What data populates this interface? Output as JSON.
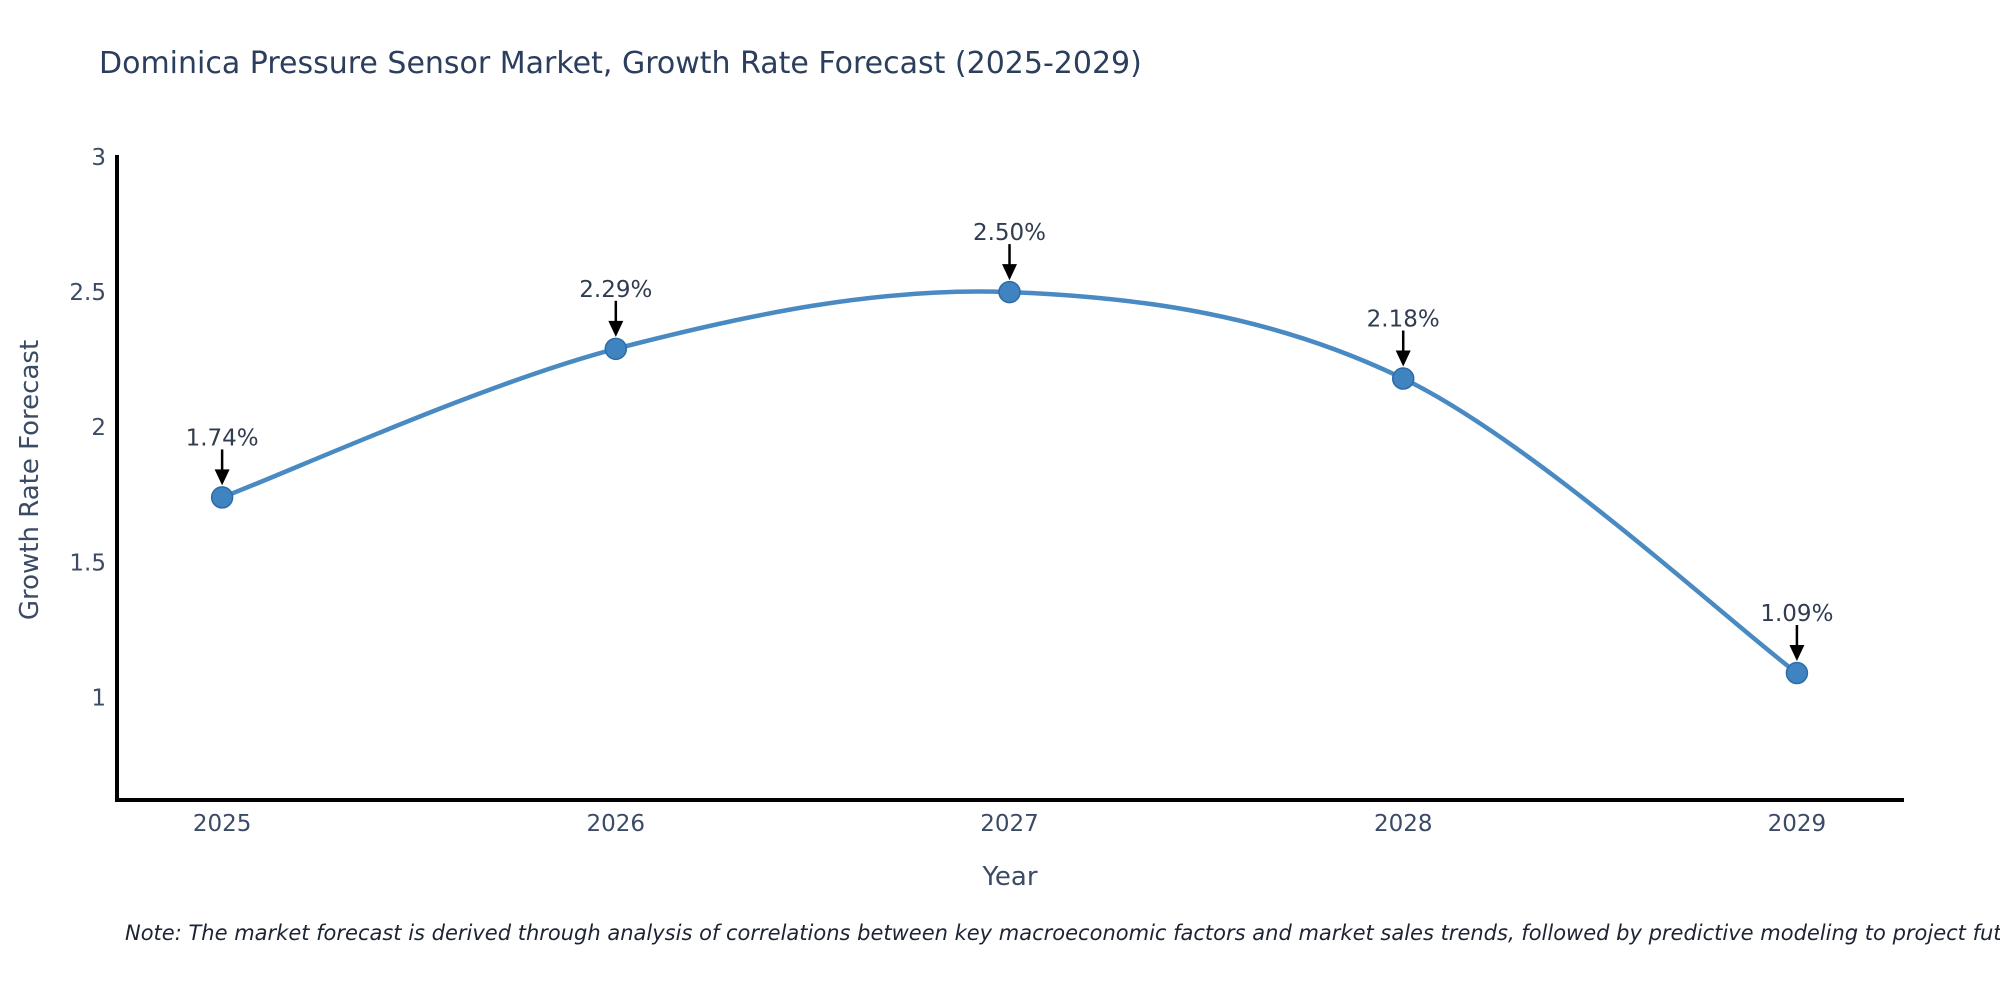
{
  "header": {
    "title": "Dominica Pressure Sensor Market, Growth Rate Forecast (2025-2029)"
  },
  "footer": {
    "note": "Note: The market forecast is derived through analysis of correlations between key macroeconomic factors and market sales trends, followed by predictive modeling to project future sales"
  },
  "chart_data": {
    "type": "line",
    "line_shape": "spline",
    "title": "Dominica Pressure Sensor Market, Growth Rate Forecast (2025-2029)",
    "xlabel": "Year",
    "ylabel": "Growth Rate Forecast",
    "categories": [
      "2025",
      "2026",
      "2027",
      "2028",
      "2029"
    ],
    "x": [
      2025,
      2026,
      2027,
      2028,
      2029
    ],
    "values": [
      1.74,
      2.29,
      2.5,
      2.18,
      1.09
    ],
    "point_labels": [
      "1.74%",
      "2.29%",
      "2.50%",
      "2.18%",
      "1.09%"
    ],
    "yticks": [
      "1",
      "1.5",
      "2",
      "2.5",
      "3"
    ],
    "ytick_values": [
      1,
      1.5,
      2,
      2.5,
      3
    ],
    "ylim": [
      0.62,
      3.0
    ],
    "xlim_years": [
      2024.733,
      2029.272
    ],
    "grid": false,
    "legend": "none",
    "markers": true,
    "colors": {
      "line": "#4a8ac2",
      "marker_fill": "#3f83c0",
      "marker_edge": "#2e6ba6",
      "annotation_arrow": "#000000",
      "annotation_text": "#303c50",
      "tick_text": "#3b4b66",
      "axis_title_text": "#3b4b66",
      "title_text": "#2c3e5d",
      "note_text": "#1c2333",
      "spine": "#000000",
      "background": "#ffffff"
    }
  }
}
